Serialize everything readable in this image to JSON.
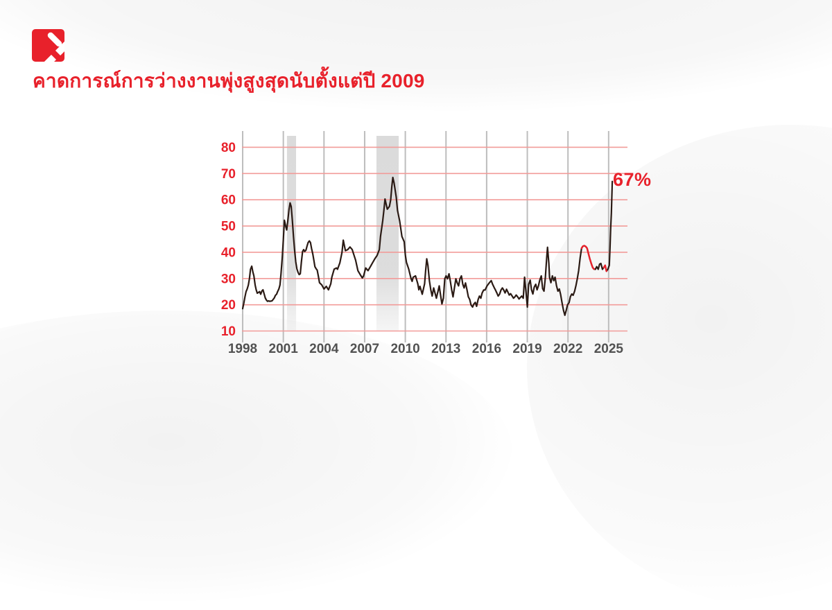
{
  "title": {
    "text": "คาดการณ์การว่างงานพุ่งสูงสุดนับตั้งแต่ปี 2009",
    "color": "#e8212b"
  },
  "logo": {
    "background_color": "#e8212b",
    "mark_color": "#ffffff"
  },
  "chart_data": {
    "type": "line",
    "title": "",
    "xlabel": "",
    "ylabel": "",
    "xlim": [
      1998,
      2026
    ],
    "ylim": [
      10,
      86
    ],
    "grid": true,
    "legend": "none",
    "x_ticks": [
      1998,
      2001,
      2004,
      2007,
      2010,
      2013,
      2016,
      2019,
      2022,
      2025
    ],
    "y_ticks": [
      10,
      20,
      30,
      40,
      50,
      60,
      70,
      80
    ],
    "annotation": {
      "text": "67%",
      "x": 2025.27,
      "y": 67
    },
    "recession_bands": [
      [
        2001.27,
        2001.94
      ],
      [
        2007.87,
        2009.51
      ]
    ],
    "red_segments": [
      [
        2023.0,
        2023.92
      ],
      [
        2024.64,
        2024.84
      ]
    ],
    "colors": {
      "line": "#2a1a14",
      "highlight": "#e8212b",
      "h_grid": "#f29b99",
      "v_grid": "#bdbdbd",
      "band": "#d9d9d9",
      "x_tick_label": "#515151",
      "y_tick_label": "#e8212b",
      "annotation": "#e8212b"
    },
    "points": [
      [
        1998.0,
        18.5
      ],
      [
        1998.08,
        20.5
      ],
      [
        1998.17,
        23.0
      ],
      [
        1998.25,
        25.0
      ],
      [
        1998.33,
        26.0
      ],
      [
        1998.42,
        27.5
      ],
      [
        1998.5,
        30.0
      ],
      [
        1998.58,
        33.5
      ],
      [
        1998.67,
        34.7
      ],
      [
        1998.75,
        32.5
      ],
      [
        1998.83,
        31.0
      ],
      [
        1998.92,
        27.5
      ],
      [
        1999.0,
        25.7
      ],
      [
        1999.08,
        24.4
      ],
      [
        1999.17,
        24.7
      ],
      [
        1999.25,
        25.0
      ],
      [
        1999.33,
        24.0
      ],
      [
        1999.42,
        25.3
      ],
      [
        1999.5,
        25.7
      ],
      [
        1999.58,
        24.2
      ],
      [
        1999.67,
        22.6
      ],
      [
        1999.75,
        21.8
      ],
      [
        1999.83,
        21.3
      ],
      [
        1999.92,
        21.5
      ],
      [
        2000.0,
        21.3
      ],
      [
        2000.17,
        21.5
      ],
      [
        2000.33,
        22.6
      ],
      [
        2000.42,
        23.6
      ],
      [
        2000.5,
        24.0
      ],
      [
        2000.58,
        25.0
      ],
      [
        2000.67,
        26.0
      ],
      [
        2000.75,
        27.5
      ],
      [
        2000.83,
        31.8
      ],
      [
        2000.92,
        38.0
      ],
      [
        2001.0,
        45.0
      ],
      [
        2001.08,
        52.2
      ],
      [
        2001.17,
        50.0
      ],
      [
        2001.25,
        48.5
      ],
      [
        2001.33,
        52.0
      ],
      [
        2001.42,
        56.4
      ],
      [
        2001.5,
        58.8
      ],
      [
        2001.58,
        57.4
      ],
      [
        2001.67,
        52.0
      ],
      [
        2001.75,
        46.0
      ],
      [
        2001.83,
        40.8
      ],
      [
        2001.92,
        36.3
      ],
      [
        2002.0,
        33.7
      ],
      [
        2002.08,
        32.4
      ],
      [
        2002.17,
        31.5
      ],
      [
        2002.25,
        31.8
      ],
      [
        2002.33,
        36.3
      ],
      [
        2002.42,
        40.3
      ],
      [
        2002.5,
        41.0
      ],
      [
        2002.58,
        40.3
      ],
      [
        2002.67,
        40.8
      ],
      [
        2002.75,
        42.4
      ],
      [
        2002.83,
        43.7
      ],
      [
        2002.92,
        44.3
      ],
      [
        2003.0,
        43.7
      ],
      [
        2003.08,
        41.5
      ],
      [
        2003.17,
        39.4
      ],
      [
        2003.25,
        37.1
      ],
      [
        2003.33,
        34.5
      ],
      [
        2003.42,
        33.7
      ],
      [
        2003.5,
        33.2
      ],
      [
        2003.58,
        31.0
      ],
      [
        2003.67,
        28.4
      ],
      [
        2003.83,
        27.6
      ],
      [
        2004.0,
        26.0
      ],
      [
        2004.17,
        27.0
      ],
      [
        2004.33,
        25.7
      ],
      [
        2004.5,
        28.0
      ],
      [
        2004.58,
        30.5
      ],
      [
        2004.75,
        33.6
      ],
      [
        2004.92,
        34.0
      ],
      [
        2005.0,
        33.5
      ],
      [
        2005.17,
        36.0
      ],
      [
        2005.33,
        40.0
      ],
      [
        2005.42,
        44.6
      ],
      [
        2005.58,
        40.6
      ],
      [
        2005.75,
        41.0
      ],
      [
        2005.92,
        42.0
      ],
      [
        2006.08,
        41.0
      ],
      [
        2006.17,
        39.6
      ],
      [
        2006.33,
        37.0
      ],
      [
        2006.5,
        33.0
      ],
      [
        2006.67,
        31.5
      ],
      [
        2006.83,
        30.2
      ],
      [
        2006.92,
        31.0
      ],
      [
        2007.08,
        34.0
      ],
      [
        2007.25,
        33.0
      ],
      [
        2007.42,
        34.5
      ],
      [
        2007.58,
        36.0
      ],
      [
        2007.75,
        37.5
      ],
      [
        2007.92,
        38.8
      ],
      [
        2008.08,
        41.0
      ],
      [
        2008.17,
        46.0
      ],
      [
        2008.33,
        52.0
      ],
      [
        2008.42,
        56.0
      ],
      [
        2008.5,
        60.3
      ],
      [
        2008.58,
        58.5
      ],
      [
        2008.67,
        56.4
      ],
      [
        2008.83,
        57.5
      ],
      [
        2008.92,
        60.0
      ],
      [
        2009.0,
        65.0
      ],
      [
        2009.08,
        68.5
      ],
      [
        2009.17,
        66.4
      ],
      [
        2009.33,
        61.0
      ],
      [
        2009.42,
        56.0
      ],
      [
        2009.58,
        52.0
      ],
      [
        2009.75,
        46.0
      ],
      [
        2009.92,
        44.0
      ],
      [
        2010.0,
        39.0
      ],
      [
        2010.08,
        36.2
      ],
      [
        2010.25,
        33.6
      ],
      [
        2010.42,
        30.0
      ],
      [
        2010.5,
        28.9
      ],
      [
        2010.58,
        30.5
      ],
      [
        2010.75,
        31.0
      ],
      [
        2010.92,
        28.0
      ],
      [
        2011.0,
        25.7
      ],
      [
        2011.08,
        27.0
      ],
      [
        2011.25,
        24.0
      ],
      [
        2011.42,
        28.0
      ],
      [
        2011.5,
        33.0
      ],
      [
        2011.58,
        37.5
      ],
      [
        2011.67,
        35.0
      ],
      [
        2011.78,
        29.0
      ],
      [
        2011.88,
        25.6
      ],
      [
        2011.98,
        23.3
      ],
      [
        2012.09,
        26.4
      ],
      [
        2012.19,
        24.5
      ],
      [
        2012.29,
        22.5
      ],
      [
        2012.5,
        27.2
      ],
      [
        2012.6,
        23.7
      ],
      [
        2012.7,
        20.3
      ],
      [
        2012.81,
        22.5
      ],
      [
        2012.91,
        29.9
      ],
      [
        2013.01,
        31.0
      ],
      [
        2013.11,
        29.9
      ],
      [
        2013.22,
        31.8
      ],
      [
        2013.32,
        29.0
      ],
      [
        2013.42,
        25.6
      ],
      [
        2013.52,
        23.0
      ],
      [
        2013.62,
        26.4
      ],
      [
        2013.73,
        29.9
      ],
      [
        2013.83,
        28.3
      ],
      [
        2013.93,
        27.2
      ],
      [
        2014.03,
        29.9
      ],
      [
        2014.14,
        31.0
      ],
      [
        2014.24,
        27.8
      ],
      [
        2014.34,
        26.4
      ],
      [
        2014.44,
        28.3
      ],
      [
        2014.55,
        25.6
      ],
      [
        2014.65,
        23.0
      ],
      [
        2014.75,
        22.0
      ],
      [
        2014.85,
        19.9
      ],
      [
        2014.96,
        19.1
      ],
      [
        2015.06,
        20.3
      ],
      [
        2015.16,
        20.9
      ],
      [
        2015.26,
        19.4
      ],
      [
        2015.37,
        22.0
      ],
      [
        2015.47,
        23.3
      ],
      [
        2015.57,
        22.5
      ],
      [
        2015.67,
        24.5
      ],
      [
        2015.78,
        25.6
      ],
      [
        2015.88,
        25.6
      ],
      [
        2016.03,
        27.2
      ],
      [
        2016.19,
        28.3
      ],
      [
        2016.34,
        29.2
      ],
      [
        2016.44,
        27.8
      ],
      [
        2016.55,
        26.6
      ],
      [
        2016.65,
        25.6
      ],
      [
        2016.75,
        24.5
      ],
      [
        2016.85,
        23.3
      ],
      [
        2016.95,
        24.0
      ],
      [
        2017.06,
        25.6
      ],
      [
        2017.16,
        26.4
      ],
      [
        2017.26,
        25.6
      ],
      [
        2017.36,
        24.5
      ],
      [
        2017.47,
        25.9
      ],
      [
        2017.57,
        24.8
      ],
      [
        2017.67,
        23.7
      ],
      [
        2017.77,
        24.2
      ],
      [
        2017.88,
        23.3
      ],
      [
        2017.98,
        22.5
      ],
      [
        2018.08,
        23.0
      ],
      [
        2018.18,
        23.7
      ],
      [
        2018.29,
        23.0
      ],
      [
        2018.39,
        22.2
      ],
      [
        2018.49,
        22.8
      ],
      [
        2018.59,
        23.3
      ],
      [
        2018.7,
        22.5
      ],
      [
        2018.8,
        30.5
      ],
      [
        2018.9,
        25.0
      ],
      [
        2019.0,
        19.1
      ],
      [
        2019.1,
        27.8
      ],
      [
        2019.21,
        29.4
      ],
      [
        2019.31,
        25.7
      ],
      [
        2019.41,
        24.1
      ],
      [
        2019.51,
        26.7
      ],
      [
        2019.62,
        27.8
      ],
      [
        2019.72,
        25.7
      ],
      [
        2019.82,
        27.2
      ],
      [
        2019.92,
        29.4
      ],
      [
        2020.03,
        31.0
      ],
      [
        2020.13,
        26.2
      ],
      [
        2020.23,
        25.2
      ],
      [
        2020.33,
        30.5
      ],
      [
        2020.43,
        37.9
      ],
      [
        2020.49,
        41.9
      ],
      [
        2020.59,
        35.8
      ],
      [
        2020.64,
        30.5
      ],
      [
        2020.74,
        28.4
      ],
      [
        2020.85,
        31.0
      ],
      [
        2020.95,
        29.2
      ],
      [
        2021.05,
        30.5
      ],
      [
        2021.15,
        27.3
      ],
      [
        2021.26,
        25.2
      ],
      [
        2021.36,
        26.0
      ],
      [
        2021.46,
        23.9
      ],
      [
        2021.56,
        20.8
      ],
      [
        2021.67,
        17.9
      ],
      [
        2021.77,
        16.0
      ],
      [
        2021.87,
        17.9
      ],
      [
        2021.97,
        20.0
      ],
      [
        2022.08,
        20.8
      ],
      [
        2022.18,
        23.1
      ],
      [
        2022.28,
        24.1
      ],
      [
        2022.38,
        23.6
      ],
      [
        2022.49,
        25.2
      ],
      [
        2022.59,
        27.3
      ],
      [
        2022.69,
        30.0
      ],
      [
        2022.79,
        33.0
      ],
      [
        2022.9,
        38.0
      ],
      [
        2023.0,
        41.5
      ],
      [
        2023.1,
        42.3
      ],
      [
        2023.2,
        42.5
      ],
      [
        2023.31,
        42.2
      ],
      [
        2023.41,
        41.5
      ],
      [
        2023.51,
        39.5
      ],
      [
        2023.61,
        37.5
      ],
      [
        2023.72,
        35.7
      ],
      [
        2023.82,
        34.2
      ],
      [
        2023.92,
        33.6
      ],
      [
        2024.02,
        33.5
      ],
      [
        2024.12,
        34.5
      ],
      [
        2024.23,
        33.5
      ],
      [
        2024.33,
        35.5
      ],
      [
        2024.43,
        35.7
      ],
      [
        2024.54,
        33.5
      ],
      [
        2024.64,
        34.2
      ],
      [
        2024.74,
        35.0
      ],
      [
        2024.84,
        32.8
      ],
      [
        2024.94,
        33.5
      ],
      [
        2025.05,
        35.0
      ],
      [
        2025.1,
        41.5
      ],
      [
        2025.15,
        49.3
      ],
      [
        2025.2,
        55.0
      ],
      [
        2025.27,
        67.0
      ]
    ]
  }
}
